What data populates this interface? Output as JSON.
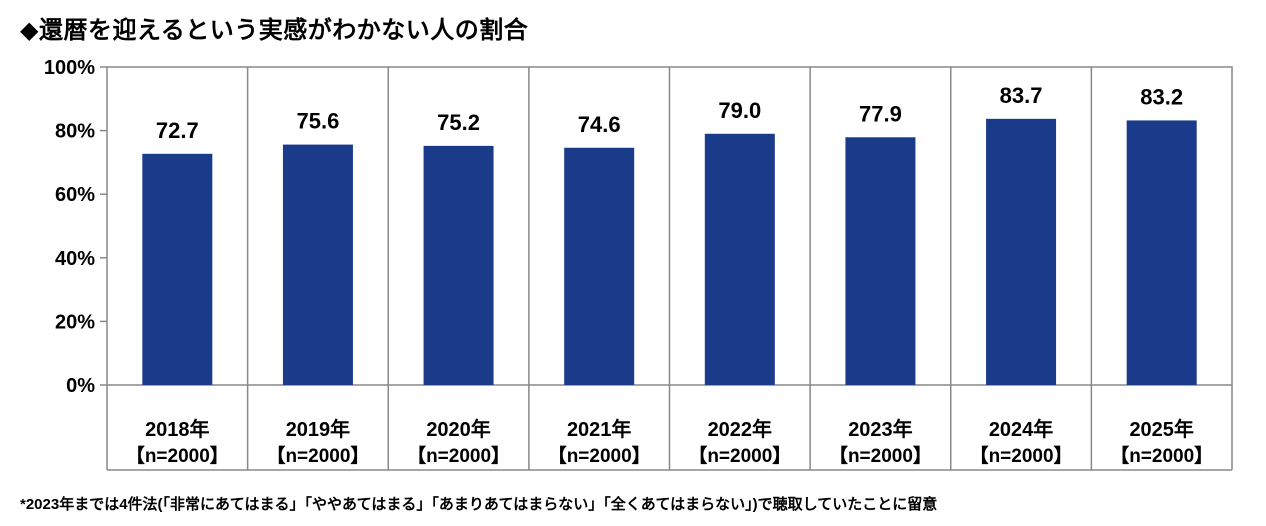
{
  "title": "◆還暦を迎えるという実感がわかない人の割合",
  "chart_data": {
    "type": "bar",
    "categories": [
      "2018年",
      "2019年",
      "2020年",
      "2021年",
      "2022年",
      "2023年",
      "2024年",
      "2025年"
    ],
    "sublabels": [
      "【n=2000】",
      "【n=2000】",
      "【n=2000】",
      "【n=2000】",
      "【n=2000】",
      "【n=2000】",
      "【n=2000】",
      "【n=2000】"
    ],
    "values": [
      72.7,
      75.6,
      75.2,
      74.6,
      79.0,
      77.9,
      83.7,
      83.2
    ],
    "value_labels": [
      "72.7",
      "75.6",
      "75.2",
      "74.6",
      "79.0",
      "77.9",
      "83.7",
      "83.2"
    ],
    "ylim": [
      0,
      100
    ],
    "yticks": [
      0,
      20,
      40,
      60,
      80,
      100
    ],
    "ytick_labels": [
      "0%",
      "20%",
      "40%",
      "60%",
      "80%",
      "100%"
    ],
    "grid": false,
    "bar_color": "#1a3a8a"
  },
  "footnote": "*2023年までは4件法(「非常にあてはまる」「ややあてはまる」「あまりあてはまらない」「全くあてはまらない」)で聴取していたことに留意"
}
